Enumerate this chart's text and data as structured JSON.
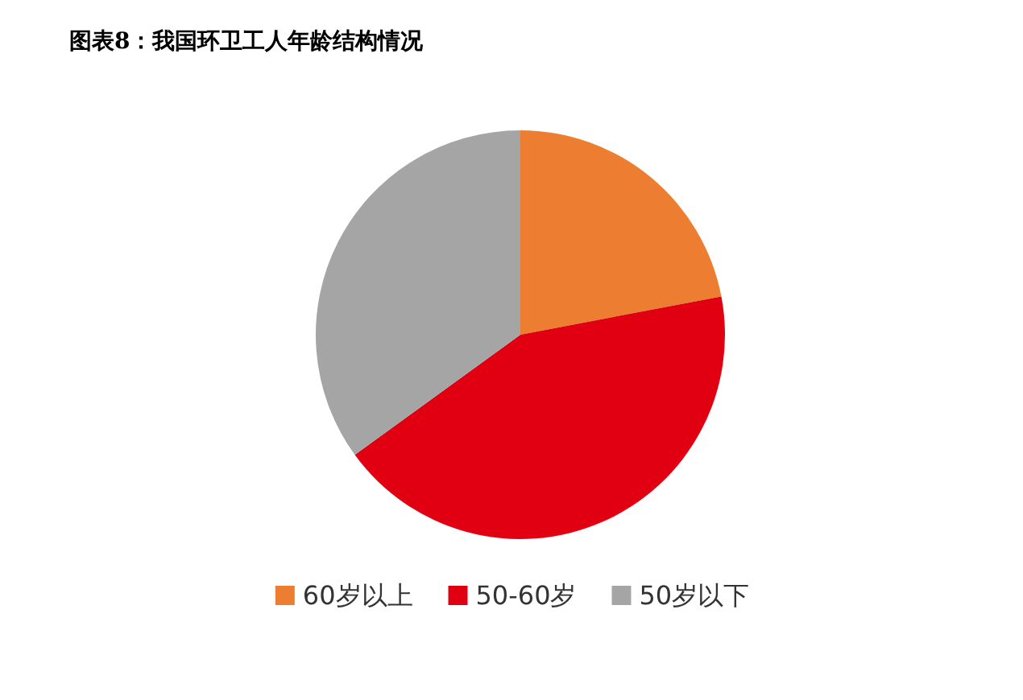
{
  "chart_data": {
    "type": "pie",
    "title": "图表8：我国环卫工人年龄结构情况",
    "categories": [
      "60岁以上",
      "50-60岁",
      "50岁以下"
    ],
    "values": [
      22,
      43,
      35
    ],
    "colors": [
      "#ed7d31",
      "#e00012",
      "#a5a5a5"
    ],
    "legend": "bottom"
  }
}
